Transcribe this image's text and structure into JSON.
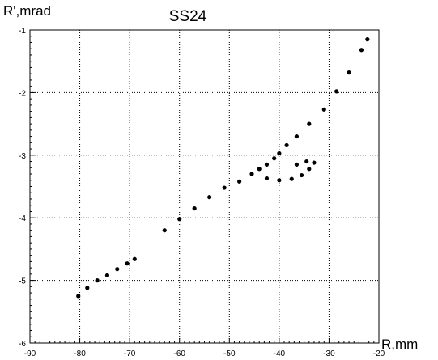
{
  "chart_data": {
    "type": "scatter",
    "title": "SS24",
    "xlabel": "R,mm",
    "ylabel": "R',mrad",
    "xlim": [
      -90,
      -20
    ],
    "ylim": [
      -6,
      -1
    ],
    "x_ticks": [
      -90,
      -80,
      -70,
      -60,
      -50,
      -40,
      -30,
      -20
    ],
    "y_ticks": [
      -6,
      -5,
      -4,
      -3,
      -2,
      -1
    ],
    "x_tick_labels": [
      "-90",
      "-80",
      "-70",
      "-60",
      "-50",
      "-40",
      "-30",
      "-20"
    ],
    "y_tick_labels": [
      "-6",
      "-5",
      "-4",
      "-3",
      "-2",
      "-1"
    ],
    "grid": true,
    "grid_style": "dotted",
    "marker_color": "#000000",
    "series": [
      {
        "values": [
          {
            "x": -80.3,
            "y": -5.25
          },
          {
            "x": -78.5,
            "y": -5.12
          },
          {
            "x": -76.5,
            "y": -5.0
          },
          {
            "x": -74.5,
            "y": -4.92
          },
          {
            "x": -72.5,
            "y": -4.82
          },
          {
            "x": -70.5,
            "y": -4.73
          },
          {
            "x": -69.0,
            "y": -4.66
          },
          {
            "x": -63.0,
            "y": -4.2
          },
          {
            "x": -60.0,
            "y": -4.02
          },
          {
            "x": -57.0,
            "y": -3.85
          },
          {
            "x": -54.0,
            "y": -3.67
          },
          {
            "x": -51.0,
            "y": -3.52
          },
          {
            "x": -48.0,
            "y": -3.42
          },
          {
            "x": -45.5,
            "y": -3.3
          },
          {
            "x": -44.0,
            "y": -3.22
          },
          {
            "x": -42.5,
            "y": -3.15
          },
          {
            "x": -41.0,
            "y": -3.05
          },
          {
            "x": -40.0,
            "y": -2.97
          },
          {
            "x": -38.5,
            "y": -2.84
          },
          {
            "x": -36.5,
            "y": -2.7
          },
          {
            "x": -34.0,
            "y": -2.5
          },
          {
            "x": -31.0,
            "y": -2.27
          },
          {
            "x": -28.5,
            "y": -1.98
          },
          {
            "x": -26.0,
            "y": -1.68
          },
          {
            "x": -23.5,
            "y": -1.32
          },
          {
            "x": -22.3,
            "y": -1.15
          },
          {
            "x": -42.5,
            "y": -3.37
          },
          {
            "x": -40.0,
            "y": -3.4
          },
          {
            "x": -37.5,
            "y": -3.38
          },
          {
            "x": -35.5,
            "y": -3.32
          },
          {
            "x": -34.0,
            "y": -3.22
          },
          {
            "x": -33.0,
            "y": -3.12
          },
          {
            "x": -34.5,
            "y": -3.1
          },
          {
            "x": -36.5,
            "y": -3.15
          }
        ]
      }
    ]
  }
}
